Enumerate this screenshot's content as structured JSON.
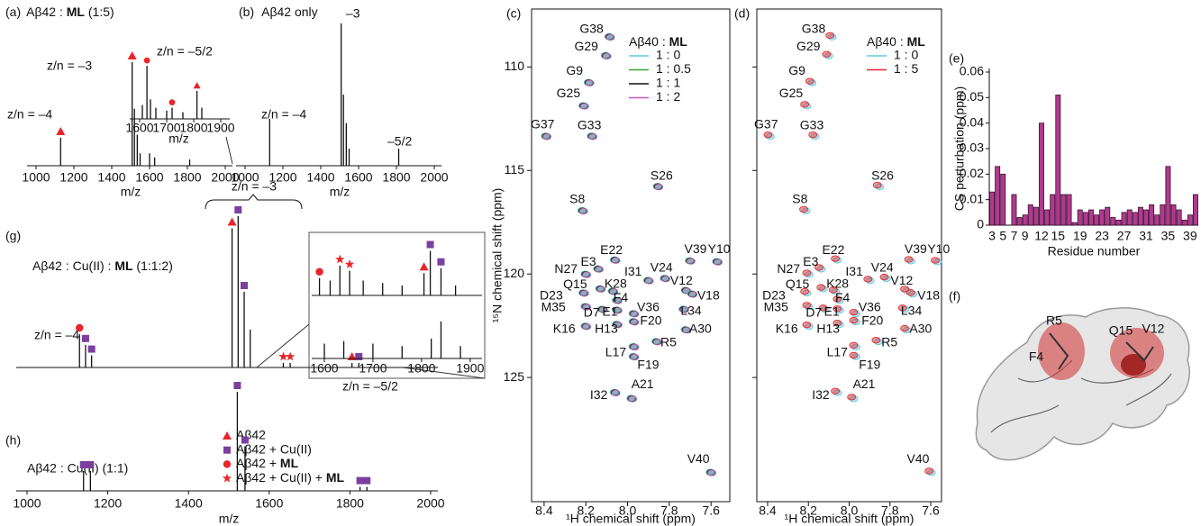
{
  "chart_data": [
    {
      "type": "spectrum",
      "panel": "(a)",
      "title": [
        "Aβ42 : ",
        "ML",
        " (1:5)"
      ],
      "xlabel": "m/z",
      "xlim": [
        1000,
        2000
      ],
      "xticks": [
        1000,
        1200,
        1400,
        1600,
        1800,
        2000
      ],
      "x": [
        1130,
        1508,
        1520,
        1535,
        1550,
        1600,
        1627,
        1812
      ],
      "values": [
        0.27,
        1.0,
        0.55,
        0.3,
        0.12,
        0.12,
        0.08,
        0.06
      ],
      "markers": [
        "triangle",
        "triangle",
        null,
        null,
        null,
        null,
        null,
        null
      ],
      "annotations": [
        "z/n = –4",
        "z/n = –3",
        "z/n = –5/2"
      ]
    },
    {
      "type": "spectrum",
      "xlabel": "m/z",
      "xlim": [
        1570,
        1920
      ],
      "xticks": [
        1600,
        1700,
        1800,
        1900
      ],
      "x": [
        1610,
        1627,
        1640,
        1660,
        1700,
        1720,
        1760,
        1812,
        1830
      ],
      "values": [
        0.25,
        0.95,
        0.35,
        0.2,
        0.15,
        0.2,
        0.12,
        0.5,
        0.2
      ],
      "markers": [
        null,
        "circle",
        null,
        null,
        null,
        "circle",
        null,
        "triangle",
        null
      ]
    },
    {
      "type": "spectrum",
      "panel": "(b)",
      "title": [
        "Aβ42 only"
      ],
      "xlabel": "m/z",
      "xlim": [
        1000,
        2000
      ],
      "xticks": [
        1000,
        1200,
        1400,
        1600,
        1800,
        2000
      ],
      "x": [
        1130,
        1508,
        1520,
        1535,
        1550,
        1812
      ],
      "values": [
        0.33,
        1.0,
        0.5,
        0.3,
        0.12,
        0.12
      ],
      "annotations": [
        "z/n = –4",
        "–3",
        "–5/2"
      ]
    },
    {
      "type": "spectrum",
      "panel": "(g)",
      "title": [
        "Aβ42 : Cu(II) : ",
        "ML",
        " (1:1:2)"
      ],
      "xlim": [
        1000,
        2000
      ],
      "x": [
        1130,
        1145,
        1160,
        1508,
        1523,
        1538,
        1553,
        1635,
        1652,
        1805,
        1822
      ],
      "values": [
        0.22,
        0.15,
        0.08,
        0.92,
        1.0,
        0.5,
        0.25,
        0.03,
        0.03,
        0.03,
        0.03
      ],
      "markers": [
        "circle",
        "square",
        "square",
        "triangle",
        "square",
        "square",
        null,
        "star",
        "star",
        "triangle",
        "square"
      ],
      "annotations": [
        "z/n = –4",
        "z/n = –3",
        "z/n = –5/2"
      ]
    },
    {
      "type": "spectrum",
      "xlim": [
        1570,
        1930
      ],
      "xticks": [
        1600,
        1700,
        1800,
        1900
      ],
      "series": [
        {
          "x": [
            1590,
            1612,
            1632,
            1652,
            1680,
            1720,
            1760,
            1805,
            1818,
            1840,
            1870
          ],
          "values": [
            0.35,
            0.3,
            0.6,
            0.5,
            0.3,
            0.25,
            0.2,
            0.45,
            0.9,
            0.55,
            0.2
          ],
          "markers": [
            "circle",
            null,
            "star",
            "star",
            null,
            null,
            null,
            "triangle",
            "square",
            "square",
            null
          ]
        },
        {
          "x": [
            1600,
            1640,
            1700,
            1760,
            1820,
            1840,
            1880
          ],
          "values": [
            0.3,
            0.35,
            0.3,
            0.25,
            0.4,
            0.75,
            0.25
          ]
        }
      ]
    },
    {
      "type": "spectrum",
      "panel": "(h)",
      "title": [
        "Aβ42 : Cu(II) (1:1)"
      ],
      "xlabel": "m/z",
      "xlim": [
        1000,
        2000
      ],
      "xticks": [
        1000,
        1200,
        1400,
        1600,
        1800,
        2000
      ],
      "x": [
        1140,
        1157,
        1521,
        1540,
        1825,
        1842
      ],
      "values": [
        0.2,
        0.2,
        1.0,
        0.45,
        0.04,
        0.04
      ],
      "markers": [
        "square",
        "square",
        "square",
        "square",
        "square",
        "square"
      ],
      "legend": [
        {
          "marker": "triangle",
          "text": [
            "Aβ42"
          ]
        },
        {
          "marker": "square",
          "text": [
            "Aβ42 + Cu(II)"
          ]
        },
        {
          "marker": "circle",
          "text": [
            "Aβ42 + ",
            "ML"
          ]
        },
        {
          "marker": "star",
          "text": [
            "Aβ42 + Cu(II) + ",
            "ML"
          ]
        }
      ]
    },
    {
      "type": "scatter",
      "panel": "(c)",
      "xlabel": "¹H chemical shift (ppm)",
      "ylabel": "¹⁵N chemical shift (ppm)",
      "xlim": [
        8.46,
        7.51
      ],
      "ylim": [
        107.2,
        131.0
      ],
      "xticks": [
        8.4,
        8.2,
        {
          "value": 8,
          "label": "8.0"
        },
        7.8,
        7.6
      ],
      "yticks": [
        110,
        115,
        120,
        125
      ],
      "legend_title": [
        "Aβ40 : ",
        "ML"
      ],
      "series": [
        {
          "name": "1 : 0",
          "color": "#5ec8e6"
        },
        {
          "name": "1 : 0.5",
          "color": "#3aa635"
        },
        {
          "name": "1 : 1",
          "color": "#111111"
        },
        {
          "name": "1 : 2",
          "color": "#c05ac0"
        }
      ],
      "labels": [
        "G38",
        "G29",
        "G9",
        "G25",
        "G37",
        "G33",
        "S26",
        "S8",
        "E22",
        "V39",
        "Y10",
        "E3",
        "N27",
        "I31",
        "V24",
        "V12",
        "K28",
        "Q15",
        "D23",
        "V18",
        "F4",
        "M35",
        "D7",
        "E1",
        "L34",
        "V36",
        "F20",
        "H13",
        "K16",
        "A30",
        "R5",
        "L17",
        "F19",
        "I32",
        "A21",
        "V40"
      ],
      "x": [
        8.086,
        8.103,
        8.185,
        8.21,
        8.39,
        8.17,
        7.854,
        8.215,
        8.06,
        7.7,
        7.57,
        8.14,
        8.2,
        7.9,
        7.82,
        7.72,
        8.07,
        8.13,
        8.21,
        7.69,
        8.05,
        8.2,
        8.12,
        8.05,
        7.73,
        7.97,
        7.97,
        8.05,
        8.2,
        7.72,
        7.86,
        7.97,
        7.97,
        8.06,
        7.98,
        7.6
      ],
      "y": [
        108.53,
        109.44,
        110.74,
        111.86,
        113.33,
        113.33,
        115.76,
        116.93,
        119.31,
        119.35,
        119.39,
        119.74,
        120.0,
        120.3,
        120.2,
        120.78,
        120.82,
        120.7,
        120.9,
        120.95,
        121.26,
        121.56,
        121.69,
        121.73,
        121.69,
        121.9,
        122.29,
        122.42,
        122.51,
        122.68,
        123.25,
        123.5,
        123.98,
        125.71,
        126.0,
        129.57
      ]
    },
    {
      "type": "scatter",
      "panel": "(d)",
      "xlabel": "¹H chemical shift (ppm)",
      "xlim": [
        8.453,
        7.547
      ],
      "ylim": [
        107.2,
        131.0
      ],
      "xticks": [
        8.4,
        8.2,
        {
          "value": 8,
          "label": "8.0"
        },
        7.8,
        7.6
      ],
      "yticks": [
        110,
        115,
        120,
        125
      ],
      "legend_title": [
        "Aβ40 : ",
        "ML"
      ],
      "series": [
        {
          "name": "1 : 0",
          "color": "#5ec8e6"
        },
        {
          "name": "1 : 5",
          "color": "#e0282a"
        }
      ]
    },
    {
      "type": "bar",
      "panel": "(e)",
      "xlabel": "Residue number",
      "ylabel": "CS perturbation (ppm)",
      "color": "#b03a8e",
      "ylim": [
        0,
        0.06
      ],
      "yticks": [
        0,
        0.01,
        0.02,
        0.03,
        0.04,
        0.05,
        0.06
      ],
      "categories": [
        "3",
        null,
        "5",
        null,
        "7",
        null,
        "9",
        null,
        null,
        "12",
        null,
        null,
        "15",
        null,
        null,
        null,
        "19",
        null,
        null,
        null,
        "23",
        null,
        null,
        null,
        "27",
        null,
        null,
        null,
        "31",
        null,
        null,
        null,
        "35",
        null,
        null,
        null,
        "39",
        null
      ],
      "values": [
        0.013,
        0.023,
        0.02,
        null,
        0.012,
        0.003,
        0.004,
        0.008,
        0.007,
        0.04,
        0.006,
        0.012,
        0.051,
        0.012,
        0.012,
        0.001,
        0.006,
        0.005,
        0.006,
        0.004,
        0.006,
        0.007,
        0.003,
        0.002,
        0.005,
        0.006,
        0.005,
        0.007,
        0.006,
        0.008,
        0.004,
        0.008,
        0.023,
        0.008,
        0.006,
        0.002,
        0.004,
        0.012
      ]
    }
  ],
  "marker_colors": {
    "triangle": "#e8262a",
    "square": "#7b3fa0",
    "circle": "#e8262a",
    "star": "#e8262a"
  },
  "structure": {
    "panel": "(f)",
    "labels": [
      "R5",
      "F4",
      "Q15",
      "V12"
    ]
  }
}
